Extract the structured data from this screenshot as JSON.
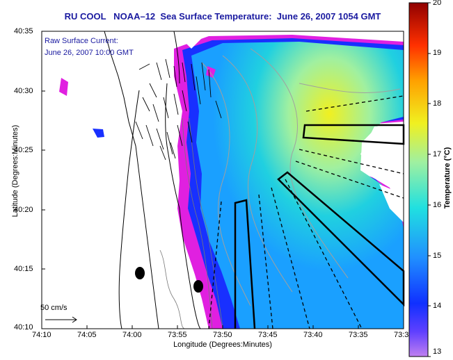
{
  "title": "RU COOL   NOAA–12  Sea Surface Temperature:  June 26, 2007 1054 GMT",
  "annotation": {
    "line1": "Raw Surface Current:",
    "line2": "June 26, 2007 10:00 GMT"
  },
  "xlabel": "Longitude (Degrees:Minutes)",
  "ylabel": "Latitude (Degrees:Minutes)",
  "x_ticks": [
    "74:10",
    "74:05",
    "74:00",
    "73:55",
    "73:50",
    "73:45",
    "73:40",
    "73:35",
    "73:3"
  ],
  "y_ticks": [
    "40:35",
    "40:30",
    "40:25",
    "40:20",
    "40:15",
    "40:10"
  ],
  "colorbar": {
    "title": "Temperature (°C)",
    "ticks": [
      "20",
      "19",
      "18",
      "17",
      "16",
      "15",
      "14",
      "13"
    ],
    "min": 13,
    "max": 20
  },
  "scale_bar": {
    "label": "50 cm/s"
  }
}
